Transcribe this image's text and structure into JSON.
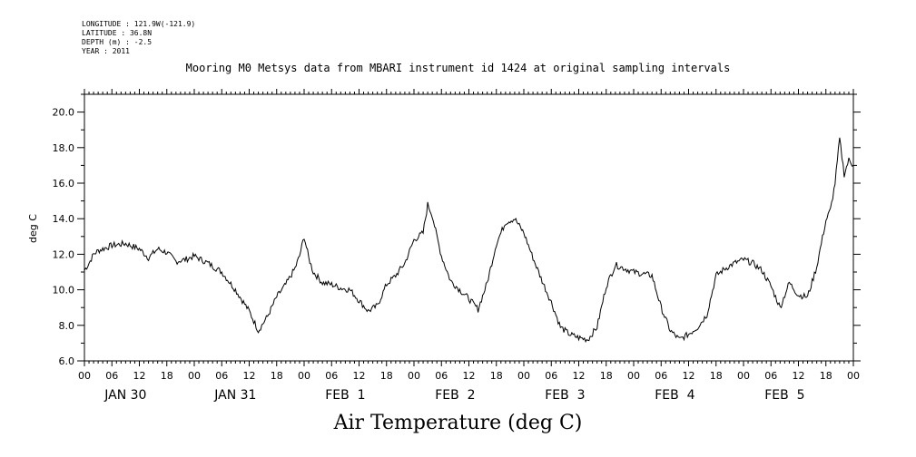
{
  "header": {
    "meta_lines": [
      "LONGITUDE : 121.9W(-121.9)",
      "LATITUDE : 36.8N",
      "DEPTH (m) : -2.5",
      "YEAR : 2011"
    ],
    "title": "Mooring M0 Metsys data from MBARI instrument id 1424 at original sampling intervals"
  },
  "chart_data": {
    "type": "line",
    "title": "Mooring M0 Metsys data from MBARI instrument id 1424 at original sampling intervals",
    "xlabel": "Air Temperature (deg C)",
    "ylabel": "deg C",
    "ylim": [
      6.0,
      21.0
    ],
    "xlim_hours": [
      0,
      168
    ],
    "y_ticks": [
      "6.0",
      "8.0",
      "10.0",
      "12.0",
      "14.0",
      "16.0",
      "18.0",
      "20.0"
    ],
    "hour_tick_labels": [
      "00",
      "06",
      "12",
      "18",
      "00",
      "06",
      "12",
      "18",
      "00",
      "06",
      "12",
      "18",
      "00",
      "06",
      "12",
      "18",
      "00",
      "06",
      "12",
      "18",
      "00",
      "06",
      "12",
      "18",
      "00",
      "06",
      "12",
      "18",
      "00"
    ],
    "day_labels": [
      "JAN 30",
      "JAN 31",
      "FEB  1",
      "FEB  2",
      "FEB  3",
      "FEB  4",
      "FEB  5"
    ],
    "series": [
      {
        "name": "Air Temperature",
        "x_hours": [
          0,
          1,
          2,
          3,
          6,
          9,
          12,
          14,
          16,
          18,
          20,
          22,
          24,
          27,
          30,
          33,
          36,
          38,
          40,
          42,
          44,
          46,
          47,
          48,
          49,
          50,
          52,
          54,
          56,
          58,
          60,
          62,
          64,
          66,
          68,
          70,
          72,
          74,
          75,
          76,
          77,
          78,
          80,
          82,
          84,
          86,
          88,
          90,
          92,
          94,
          96,
          98,
          100,
          102,
          104,
          106,
          108,
          110,
          112,
          114,
          116,
          118,
          120,
          122,
          124,
          126,
          128,
          130,
          132,
          134,
          136,
          138,
          140,
          142,
          144,
          146,
          148,
          150,
          152,
          154,
          156,
          158,
          160,
          162,
          163,
          164,
          165,
          166,
          167,
          168
        ],
        "values": [
          11.1,
          11.5,
          12.0,
          12.2,
          12.5,
          12.6,
          12.3,
          11.8,
          12.3,
          12.1,
          11.6,
          11.7,
          11.9,
          11.5,
          11.0,
          10.0,
          8.8,
          7.7,
          8.5,
          9.6,
          10.3,
          11.2,
          11.9,
          13.0,
          11.8,
          11.0,
          10.4,
          10.3,
          10.1,
          10.0,
          9.4,
          8.8,
          9.1,
          10.3,
          10.8,
          11.5,
          12.8,
          13.2,
          14.8,
          14.2,
          13.0,
          11.9,
          10.5,
          10.0,
          9.5,
          8.9,
          10.4,
          12.6,
          13.8,
          14.0,
          13.2,
          11.8,
          10.5,
          9.3,
          7.9,
          7.5,
          7.3,
          7.2,
          7.9,
          10.2,
          11.4,
          11.2,
          11.0,
          10.9,
          10.8,
          9.0,
          7.7,
          7.2,
          7.5,
          7.9,
          8.6,
          10.8,
          11.2,
          11.5,
          11.7,
          11.5,
          11.1,
          10.2,
          9.0,
          10.4,
          9.7,
          9.6,
          11.3,
          13.9,
          14.5,
          16.0,
          18.5,
          16.5,
          17.3,
          17.0
        ]
      }
    ],
    "grid": false
  }
}
